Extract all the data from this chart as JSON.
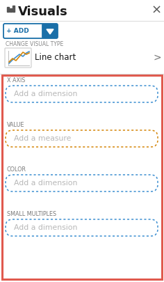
{
  "title": "Visuals",
  "title_fontsize": 13,
  "bg_color": "#ffffff",
  "red_border_color": "#e05a4e",
  "blue_dot_color": "#3d8fd1",
  "orange_dot_color": "#d4860a",
  "add_btn_color": "#1a6fa8",
  "sections": [
    {
      "label": "X AXIS",
      "placeholder": "Add a dimension",
      "border_color": "#3d8fd1"
    },
    {
      "label": "VALUE",
      "placeholder": "Add a measure",
      "border_color": "#d4860a"
    },
    {
      "label": "COLOR",
      "placeholder": "Add a dimension",
      "border_color": "#3d8fd1"
    },
    {
      "label": "SMALL MULTIPLES",
      "placeholder": "Add a dimension",
      "border_color": "#3d8fd1"
    }
  ]
}
